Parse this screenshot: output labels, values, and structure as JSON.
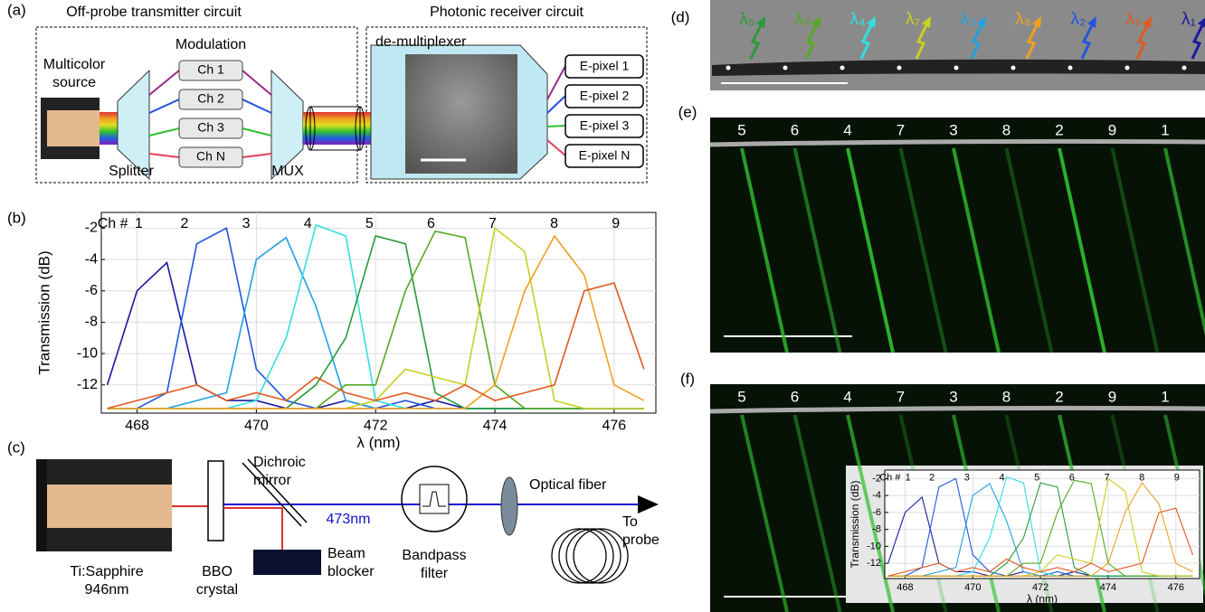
{
  "panel_a": {
    "label": "(a)",
    "transmitter_title": "Off-probe transmitter circuit",
    "receiver_title": "Photonic receiver circuit",
    "modulation": "Modulation",
    "source": [
      "Multicolor",
      "source"
    ],
    "channels": [
      "Ch 1",
      "Ch 2",
      "Ch 3",
      "Ch N"
    ],
    "splitter": "Splitter",
    "mux": "MUX",
    "demux": "de-multiplexer",
    "pixels": [
      "E-pixel 1",
      "E-pixel 2",
      "E-pixel 3",
      "E-pixel N"
    ]
  },
  "panel_b": {
    "label": "(b)"
  },
  "chart_data": {
    "type": "line",
    "y_label": "Transmission (dB)",
    "x_label": "λ (nm)",
    "channel_prefix": "Ch #",
    "x": [
      467.5,
      468,
      468.5,
      469,
      469.5,
      470,
      470.5,
      471,
      471.5,
      472,
      472.5,
      473,
      473.5,
      474,
      474.5,
      475,
      475.5,
      476,
      476.5
    ],
    "xlim": [
      467.4,
      476.7
    ],
    "xticks": [
      468,
      470,
      472,
      474,
      476
    ],
    "ylim": [
      -13.8,
      -1
    ],
    "yticks": [
      -2,
      -4,
      -6,
      -8,
      -10,
      -12
    ],
    "grid": true,
    "series": [
      {
        "name": "1",
        "color": "#1a1aa0",
        "values": [
          -12,
          -6,
          -4.2,
          -12,
          -13,
          -13,
          -13.5,
          -13.5,
          -13,
          -13.5,
          -13.5,
          -13,
          -13.5,
          -13.5,
          -13.5,
          -13.5,
          -13.5,
          -13.5,
          -13.5
        ]
      },
      {
        "name": "2",
        "color": "#2255dd",
        "values": [
          -13.5,
          -13.5,
          -12.5,
          -3,
          -2,
          -11,
          -13,
          -13.5,
          -13.5,
          -13.5,
          -13,
          -13.5,
          -13.5,
          -13.5,
          -13.5,
          -13.5,
          -13.5,
          -13.5,
          -13.5
        ]
      },
      {
        "name": "3",
        "color": "#22a0e0",
        "values": [
          -13.5,
          -13.5,
          -13.5,
          -13,
          -12.5,
          -4,
          -2.6,
          -7,
          -13,
          -13.5,
          -13.5,
          -13.5,
          -13.5,
          -13.5,
          -13.5,
          -13.5,
          -13.5,
          -13.5,
          -13.5
        ]
      },
      {
        "name": "4",
        "color": "#30e0e0",
        "values": [
          -13.5,
          -13.5,
          -13.5,
          -13.5,
          -13.5,
          -13,
          -9,
          -1.8,
          -2.5,
          -13,
          -13.5,
          -13.5,
          -13.5,
          -13.5,
          -13.5,
          -13.5,
          -13.5,
          -13.5,
          -13.5
        ]
      },
      {
        "name": "5",
        "color": "#2a9a3a",
        "values": [
          -13.5,
          -13.5,
          -13.5,
          -13.5,
          -13.5,
          -13.5,
          -13.5,
          -12,
          -9,
          -2.5,
          -3,
          -12.5,
          -13.5,
          -13.5,
          -13.5,
          -13.5,
          -13.5,
          -13.5,
          -13.5
        ]
      },
      {
        "name": "6",
        "color": "#55aa22",
        "values": [
          -13.5,
          -13.5,
          -13.5,
          -13.5,
          -13.5,
          -13.5,
          -13.5,
          -13.5,
          -12,
          -12,
          -6,
          -2.2,
          -2.6,
          -12,
          -13.5,
          -13.5,
          -13.5,
          -13.5,
          -13.5
        ]
      },
      {
        "name": "7",
        "color": "#c8d020",
        "values": [
          -13.5,
          -13.5,
          -13.5,
          -13.5,
          -13.5,
          -13.5,
          -13.5,
          -13.5,
          -13.5,
          -13,
          -11,
          -11.5,
          -12,
          -2,
          -3.5,
          -13,
          -13.5,
          -13.5,
          -13.5
        ]
      },
      {
        "name": "8",
        "color": "#f0a020",
        "values": [
          -13.5,
          -13.5,
          -13.5,
          -13.5,
          -13.5,
          -13.5,
          -13.5,
          -13.5,
          -13.5,
          -13.5,
          -13.5,
          -13.5,
          -13.5,
          -12,
          -6,
          -2.5,
          -5,
          -12,
          -13
        ]
      },
      {
        "name": "9",
        "color": "#e05a20",
        "values": [
          -13.5,
          -13,
          -12.5,
          -12,
          -13,
          -12.5,
          -13,
          -11.5,
          -12.5,
          -13,
          -12.5,
          -13,
          -12,
          -13,
          -12.5,
          -12,
          -6,
          -5.5,
          -11
        ]
      }
    ]
  },
  "panel_c": {
    "label": "(c)",
    "laser": [
      "Ti:Sapphire",
      "946nm"
    ],
    "crystal": [
      "BBO",
      "crystal"
    ],
    "mirror": [
      "Dichroic",
      "mirror"
    ],
    "beam": "473nm",
    "blocker": [
      "Beam",
      "blocker"
    ],
    "filter": [
      "Bandpass",
      "filter"
    ],
    "fiber": "Optical fiber",
    "probe": [
      "To",
      "probe"
    ]
  },
  "panel_d": {
    "label": "(d)",
    "wavelengths": [
      "λ₅",
      "λ₆",
      "λ₄",
      "λ₇",
      "λ₃",
      "λ₈",
      "λ₂",
      "λ₉",
      "λ₁"
    ],
    "colors": [
      "#2a9a3a",
      "#55aa22",
      "#30e0e0",
      "#c8d020",
      "#22a0e0",
      "#f0a020",
      "#2255dd",
      "#e05a20",
      "#1a1aa0"
    ]
  },
  "panel_e": {
    "label": "(e)",
    "channels": [
      "5",
      "6",
      "4",
      "7",
      "3",
      "8",
      "2",
      "9",
      "1"
    ]
  },
  "panel_f": {
    "label": "(f)",
    "channels": [
      "5",
      "6",
      "4",
      "7",
      "3",
      "8",
      "2",
      "9",
      "1"
    ]
  }
}
